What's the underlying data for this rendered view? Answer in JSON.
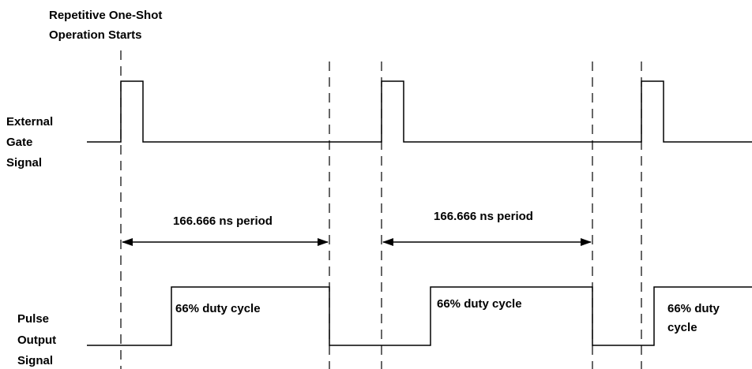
{
  "annotation": {
    "lines": [
      "Repetitive One-Shot",
      "Operation Starts"
    ]
  },
  "signals": [
    {
      "label_lines": [
        "External",
        "Gate",
        "Signal"
      ]
    },
    {
      "label_lines": [
        "Pulse",
        "Output",
        "Signal"
      ]
    }
  ],
  "periods": [
    {
      "label": "166.666 ns period"
    },
    {
      "label": "166.666 ns period"
    }
  ],
  "duty_labels": [
    {
      "lines": [
        "66% duty cycle"
      ]
    },
    {
      "lines": [
        "66% duty cycle"
      ]
    },
    {
      "lines": [
        "66% duty",
        "cycle"
      ]
    }
  ]
}
